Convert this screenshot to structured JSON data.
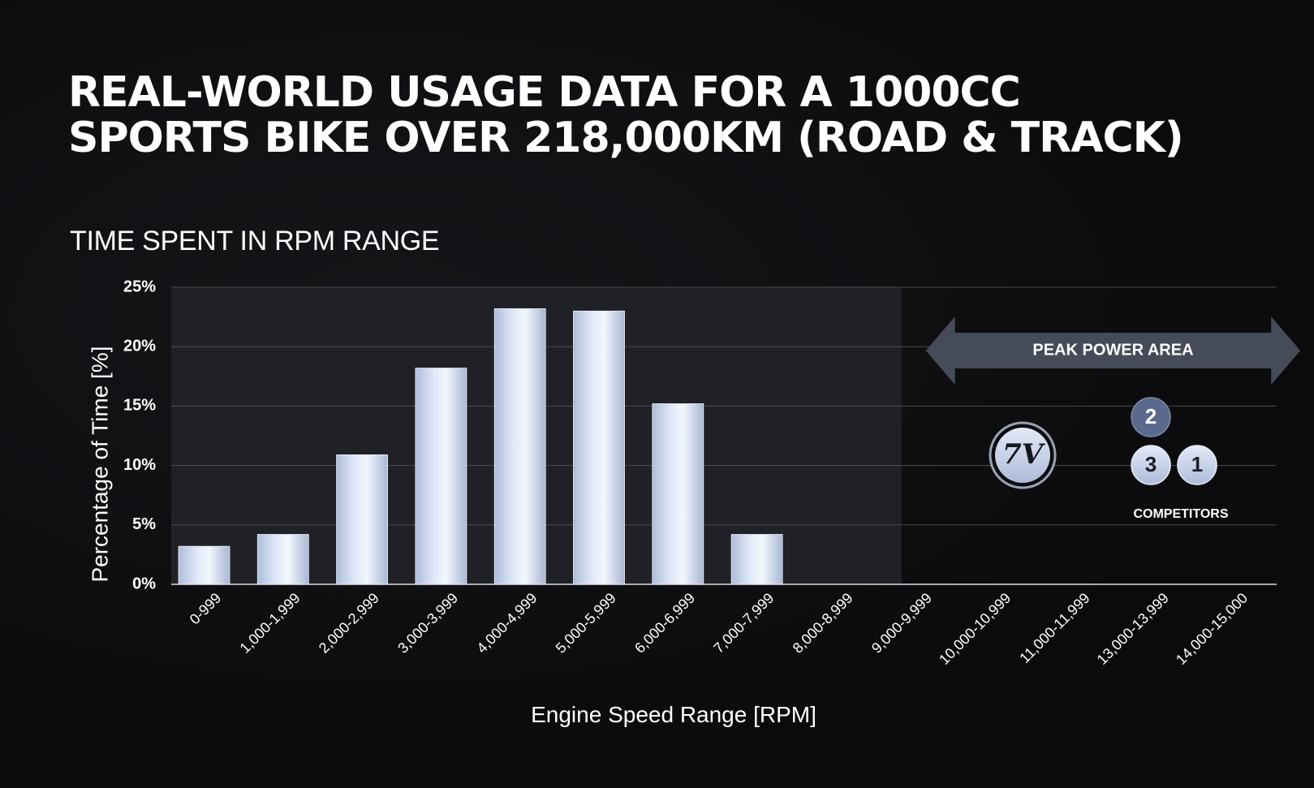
{
  "header": {
    "title_line1": "REAL-WORLD USAGE DATA FOR A 1000CC",
    "title_line2": "SPORTS BIKE OVER 218,000KM (ROAD & TRACK)",
    "subtitle": "TIME SPENT IN RPM RANGE"
  },
  "chart_data": {
    "type": "bar",
    "title": "TIME SPENT IN RPM RANGE",
    "xlabel": "Engine Speed Range [RPM]",
    "ylabel": "Percentage of Time [%]",
    "categories": [
      "0-999",
      "1,000-1,999",
      "2,000-2,999",
      "3,000-3,999",
      "4,000-4,999",
      "5,000-5,999",
      "6,000-6,999",
      "7,000-7,999",
      "8,000-8,999",
      "9,000-9,999",
      "10,000-10,999",
      "11,000-11,999",
      "13,000-13,999",
      "14,000-15,000"
    ],
    "values": [
      3.2,
      4.2,
      10.9,
      18.2,
      23.2,
      23.0,
      15.2,
      4.2,
      0,
      0,
      0,
      0,
      0,
      0
    ],
    "ylim": [
      0,
      25
    ],
    "yticks": [
      "0%",
      "5%",
      "10%",
      "15%",
      "20%",
      "25%"
    ],
    "ytick_values": [
      0,
      5,
      10,
      15,
      20,
      25
    ],
    "grid": true,
    "shaded_region_categories": [
      "0-999",
      "8,000-8,999"
    ],
    "annotations": {
      "peak_area_label": "PEAK POWER AREA",
      "peak_area_from": "9,000-9,999",
      "peak_area_to": "14,000-15,000",
      "logo_text": "7V",
      "badges": [
        "2",
        "3",
        "1"
      ],
      "competitors_label": "COMPETITORS"
    },
    "colors": {
      "bar": "#c9d6ee",
      "bar_edge": "#eef3fc",
      "shaded_region": "#1f2126",
      "arrow": "#454b58",
      "badge_dark": "#5a6a8c",
      "badge_light": "#c8d4ee",
      "grid": "#4a4d55"
    }
  }
}
